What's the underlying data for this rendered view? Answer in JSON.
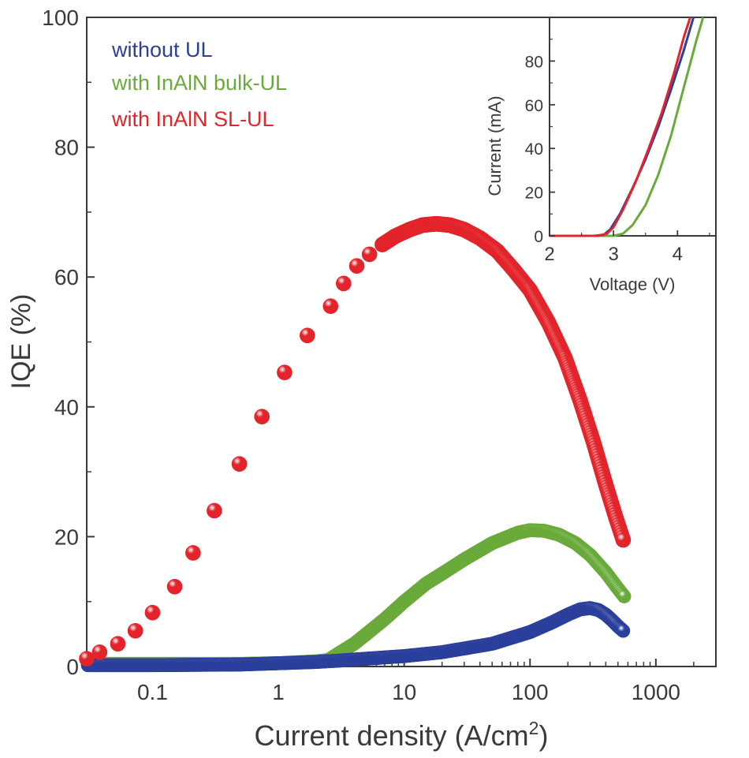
{
  "chart_data": [
    {
      "type": "scatter",
      "x_scale": "log",
      "xlabel": "Current density (A/cm",
      "xlabel_sup": "2",
      "xlabel_close": ")",
      "ylabel": "IQE (%)",
      "xlim": [
        0.03,
        3000
      ],
      "ylim": [
        0,
        100
      ],
      "x_ticks": [
        0.1,
        1,
        10,
        100,
        1000
      ],
      "x_tick_labels": [
        "0.1",
        "1",
        "10",
        "100",
        "1000"
      ],
      "y_ticks": [
        0,
        20,
        40,
        60,
        80,
        100
      ],
      "y_tick_labels": [
        "0",
        "20",
        "40",
        "60",
        "80",
        "100"
      ],
      "legend_position": "top-left",
      "series": [
        {
          "name": "without UL",
          "color": "#2b3f9c",
          "points": [
            [
              0.03,
              0.2
            ],
            [
              0.1,
              0.2
            ],
            [
              0.5,
              0.3
            ],
            [
              1,
              0.5
            ],
            [
              2,
              0.7
            ],
            [
              3,
              0.9
            ],
            [
              5,
              1.2
            ],
            [
              10,
              1.6
            ],
            [
              20,
              2.2
            ],
            [
              50,
              3.5
            ],
            [
              100,
              5.3
            ],
            [
              150,
              6.8
            ],
            [
              200,
              8.0
            ],
            [
              250,
              8.8
            ],
            [
              300,
              9.0
            ],
            [
              350,
              8.7
            ],
            [
              400,
              8.0
            ],
            [
              450,
              7.1
            ],
            [
              500,
              6.2
            ],
            [
              550,
              5.5
            ]
          ]
        },
        {
          "name": "with InAlN bulk-UL",
          "color": "#6aaa3a",
          "points": [
            [
              0.03,
              0.4
            ],
            [
              0.1,
              0.4
            ],
            [
              0.5,
              0.4
            ],
            [
              1,
              0.5
            ],
            [
              2,
              0.8
            ],
            [
              2.5,
              1.0
            ],
            [
              3,
              2.0
            ],
            [
              4,
              3.5
            ],
            [
              5,
              5.0
            ],
            [
              7,
              7.3
            ],
            [
              10,
              10.0
            ],
            [
              15,
              12.8
            ],
            [
              20,
              14.3
            ],
            [
              30,
              16.5
            ],
            [
              50,
              19.0
            ],
            [
              80,
              20.6
            ],
            [
              100,
              21.0
            ],
            [
              130,
              20.9
            ],
            [
              170,
              20.3
            ],
            [
              230,
              19.0
            ],
            [
              300,
              17.2
            ],
            [
              400,
              14.5
            ],
            [
              500,
              12.0
            ],
            [
              560,
              10.8
            ]
          ]
        },
        {
          "name": "with InAlN SL-UL",
          "color": "#e3242b",
          "points": [
            [
              0.03,
              1.2
            ],
            [
              0.038,
              2.2
            ],
            [
              0.053,
              3.5
            ],
            [
              0.073,
              5.5
            ],
            [
              0.1,
              8.3
            ],
            [
              0.15,
              12.3
            ],
            [
              0.21,
              17.5
            ],
            [
              0.31,
              24.0
            ],
            [
              0.49,
              31.2
            ],
            [
              0.74,
              38.5
            ],
            [
              1.12,
              45.3
            ],
            [
              1.7,
              51.0
            ],
            [
              2.6,
              55.5
            ],
            [
              3.3,
              59.0
            ],
            [
              4.2,
              61.7
            ],
            [
              5.3,
              63.5
            ],
            [
              6.7,
              65.0
            ],
            [
              8.5,
              66.3
            ],
            [
              11,
              67.3
            ],
            [
              14,
              68.0
            ],
            [
              18,
              68.2
            ],
            [
              23,
              68.0
            ],
            [
              30,
              67.3
            ],
            [
              40,
              66.0
            ],
            [
              55,
              64.0
            ],
            [
              75,
              61.0
            ],
            [
              100,
              58.0
            ],
            [
              140,
              53.0
            ],
            [
              190,
              47.5
            ],
            [
              250,
              41.0
            ],
            [
              320,
              34.5
            ],
            [
              400,
              28.0
            ],
            [
              480,
              23.0
            ],
            [
              550,
              19.5
            ]
          ]
        }
      ]
    },
    {
      "type": "line",
      "xlabel": "Voltage (V)",
      "ylabel": "Current (mA)",
      "xlim": [
        2,
        4.6
      ],
      "ylim": [
        0,
        100
      ],
      "x_ticks": [
        2,
        3,
        4
      ],
      "x_tick_labels": [
        "2",
        "3",
        "4"
      ],
      "y_ticks": [
        0,
        20,
        40,
        60,
        80
      ],
      "y_tick_labels": [
        "0",
        "20",
        "40",
        "60",
        "80"
      ],
      "series": [
        {
          "color": "#2b3f9c",
          "points": [
            [
              2,
              0
            ],
            [
              2.7,
              0
            ],
            [
              2.85,
              0.5
            ],
            [
              2.95,
              3
            ],
            [
              3.1,
              10
            ],
            [
              3.3,
              22
            ],
            [
              3.5,
              35
            ],
            [
              3.7,
              50
            ],
            [
              3.9,
              67
            ],
            [
              4.1,
              85
            ],
            [
              4.25,
              100
            ]
          ]
        },
        {
          "color": "#6aaa3a",
          "points": [
            [
              2,
              0
            ],
            [
              3.0,
              0
            ],
            [
              3.15,
              1
            ],
            [
              3.3,
              5
            ],
            [
              3.5,
              14
            ],
            [
              3.7,
              28
            ],
            [
              3.9,
              46
            ],
            [
              4.1,
              68
            ],
            [
              4.3,
              90
            ],
            [
              4.4,
              100
            ]
          ]
        },
        {
          "color": "#e3242b",
          "points": [
            [
              2,
              0
            ],
            [
              2.75,
              0
            ],
            [
              2.9,
              1
            ],
            [
              3.0,
              4
            ],
            [
              3.15,
              12
            ],
            [
              3.35,
              25
            ],
            [
              3.55,
              40
            ],
            [
              3.75,
              56
            ],
            [
              3.95,
              75
            ],
            [
              4.1,
              91
            ],
            [
              4.2,
              100
            ]
          ]
        }
      ]
    }
  ]
}
